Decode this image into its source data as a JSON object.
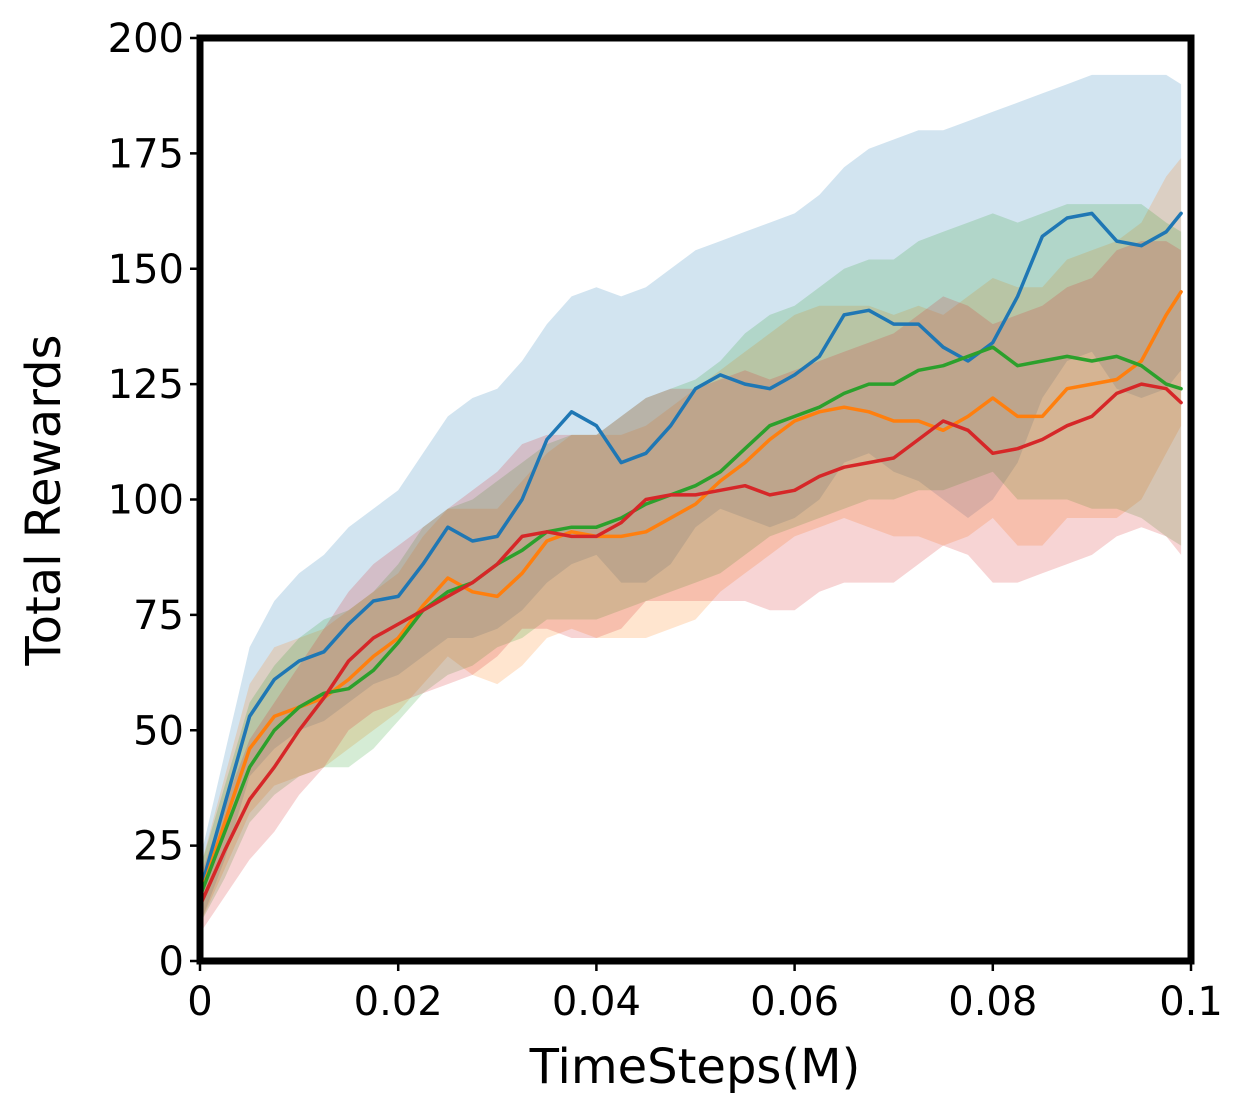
{
  "chart_data": {
    "type": "line",
    "title": "",
    "xlabel": "TimeSteps(M)",
    "ylabel": "Total Rewards",
    "xlim": [
      0,
      0.1
    ],
    "ylim": [
      0,
      200
    ],
    "xticks": [
      0,
      0.02,
      0.04,
      0.06,
      0.08,
      0.1
    ],
    "xtick_labels": [
      "0",
      "0.02",
      "0.04",
      "0.06",
      "0.08",
      "0.1"
    ],
    "yticks": [
      0,
      25,
      50,
      75,
      100,
      125,
      150,
      175,
      200
    ],
    "ytick_labels": [
      "0",
      "25",
      "50",
      "75",
      "100",
      "125",
      "150",
      "175",
      "200"
    ],
    "grid": false,
    "legend": "none",
    "x": [
      0.0,
      0.0025,
      0.005,
      0.0075,
      0.01,
      0.0125,
      0.015,
      0.0175,
      0.02,
      0.0225,
      0.025,
      0.0275,
      0.03,
      0.0325,
      0.035,
      0.0375,
      0.04,
      0.0425,
      0.045,
      0.0475,
      0.05,
      0.0525,
      0.055,
      0.0575,
      0.06,
      0.0625,
      0.065,
      0.0675,
      0.07,
      0.0725,
      0.075,
      0.0775,
      0.08,
      0.0825,
      0.085,
      0.0875,
      0.09,
      0.0925,
      0.095,
      0.0975,
      0.099
    ],
    "series": [
      {
        "color": "#1f77b4",
        "values": [
          15,
          34,
          53,
          61,
          65,
          67,
          73,
          78,
          79,
          86,
          94,
          91,
          92,
          100,
          113,
          119,
          116,
          108,
          110,
          116,
          124,
          127,
          125,
          124,
          127,
          131,
          140,
          141,
          138,
          138,
          133,
          130,
          134,
          144,
          157,
          161,
          162,
          156,
          155,
          158,
          162
        ],
        "upper": [
          22,
          45,
          68,
          78,
          84,
          88,
          94,
          98,
          102,
          110,
          118,
          122,
          124,
          130,
          138,
          144,
          146,
          144,
          146,
          150,
          154,
          156,
          158,
          160,
          162,
          166,
          172,
          176,
          178,
          180,
          180,
          182,
          184,
          186,
          188,
          190,
          192,
          192,
          192,
          192,
          190
        ],
        "lower": [
          8,
          22,
          40,
          46,
          50,
          52,
          56,
          60,
          62,
          66,
          70,
          70,
          72,
          76,
          82,
          86,
          88,
          82,
          82,
          86,
          94,
          98,
          96,
          94,
          96,
          100,
          108,
          110,
          106,
          104,
          100,
          96,
          100,
          108,
          122,
          130,
          132,
          124,
          122,
          124,
          128
        ]
      },
      {
        "color": "#ff7f0e",
        "values": [
          14,
          30,
          46,
          53,
          55,
          57,
          61,
          66,
          70,
          77,
          83,
          80,
          79,
          84,
          91,
          93,
          92,
          92,
          93,
          96,
          99,
          104,
          108,
          113,
          117,
          119,
          120,
          119,
          117,
          117,
          115,
          118,
          122,
          118,
          118,
          124,
          125,
          126,
          130,
          140,
          145
        ],
        "upper": [
          20,
          40,
          60,
          68,
          70,
          72,
          76,
          80,
          84,
          92,
          98,
          98,
          98,
          104,
          110,
          114,
          114,
          114,
          116,
          120,
          124,
          128,
          132,
          136,
          140,
          142,
          142,
          142,
          140,
          142,
          140,
          144,
          148,
          146,
          146,
          152,
          154,
          156,
          160,
          170,
          174
        ],
        "lower": [
          8,
          20,
          32,
          38,
          40,
          42,
          46,
          50,
          54,
          60,
          66,
          62,
          60,
          64,
          70,
          72,
          70,
          70,
          70,
          72,
          74,
          80,
          84,
          88,
          92,
          94,
          96,
          94,
          92,
          92,
          90,
          92,
          96,
          90,
          90,
          96,
          96,
          96,
          100,
          110,
          116
        ]
      },
      {
        "color": "#2ca02c",
        "values": [
          14,
          28,
          42,
          50,
          55,
          58,
          59,
          63,
          69,
          76,
          80,
          82,
          86,
          89,
          93,
          94,
          94,
          96,
          99,
          101,
          103,
          106,
          111,
          116,
          118,
          120,
          123,
          125,
          125,
          128,
          129,
          131,
          133,
          129,
          130,
          131,
          130,
          131,
          129,
          125,
          124
        ],
        "upper": [
          20,
          38,
          56,
          64,
          70,
          74,
          76,
          80,
          86,
          94,
          98,
          100,
          104,
          108,
          112,
          114,
          114,
          118,
          122,
          124,
          126,
          130,
          136,
          140,
          142,
          146,
          150,
          152,
          152,
          156,
          158,
          160,
          162,
          160,
          162,
          164,
          164,
          164,
          164,
          160,
          158
        ],
        "lower": [
          8,
          18,
          30,
          36,
          40,
          42,
          42,
          46,
          52,
          58,
          62,
          64,
          68,
          70,
          74,
          74,
          74,
          76,
          78,
          80,
          82,
          84,
          88,
          92,
          94,
          96,
          98,
          100,
          100,
          102,
          102,
          104,
          106,
          100,
          100,
          100,
          98,
          98,
          96,
          92,
          90
        ]
      },
      {
        "color": "#d62728",
        "values": [
          12,
          24,
          35,
          42,
          50,
          57,
          65,
          70,
          73,
          76,
          79,
          82,
          86,
          92,
          93,
          92,
          92,
          95,
          100,
          101,
          101,
          102,
          103,
          101,
          102,
          105,
          107,
          108,
          109,
          113,
          117,
          115,
          110,
          111,
          113,
          116,
          118,
          123,
          125,
          124,
          121
        ],
        "upper": [
          18,
          34,
          48,
          56,
          64,
          72,
          80,
          86,
          90,
          94,
          98,
          102,
          106,
          112,
          114,
          114,
          114,
          118,
          122,
          124,
          124,
          126,
          128,
          126,
          128,
          130,
          132,
          134,
          136,
          140,
          144,
          142,
          138,
          140,
          142,
          146,
          148,
          154,
          156,
          156,
          154
        ],
        "lower": [
          6,
          14,
          22,
          28,
          36,
          42,
          50,
          54,
          56,
          58,
          60,
          62,
          66,
          72,
          72,
          70,
          70,
          72,
          78,
          78,
          78,
          78,
          78,
          76,
          76,
          80,
          82,
          82,
          82,
          86,
          90,
          88,
          82,
          82,
          84,
          86,
          88,
          92,
          94,
          92,
          88
        ]
      }
    ]
  }
}
